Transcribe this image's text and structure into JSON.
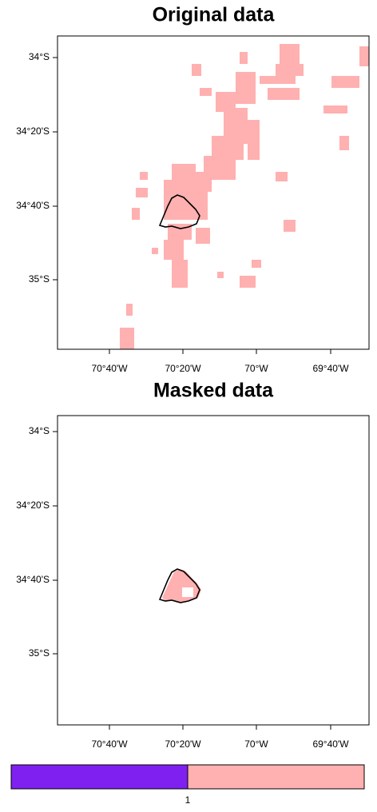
{
  "panels": [
    {
      "title": "Original data",
      "yticks": [
        "34°S",
        "34°20'S",
        "34°40'S",
        "35°S"
      ],
      "xticks": [
        "70°40'W",
        "70°20'W",
        "70°W",
        "69°40'W"
      ]
    },
    {
      "title": "Masked data",
      "yticks": [
        "34°S",
        "34°20'S",
        "34°40'S",
        "35°S"
      ],
      "xticks": [
        "70°40'W",
        "70°20'W",
        "70°W",
        "69°40'W"
      ]
    }
  ],
  "colorbar": {
    "labels": [
      "1"
    ]
  }
}
